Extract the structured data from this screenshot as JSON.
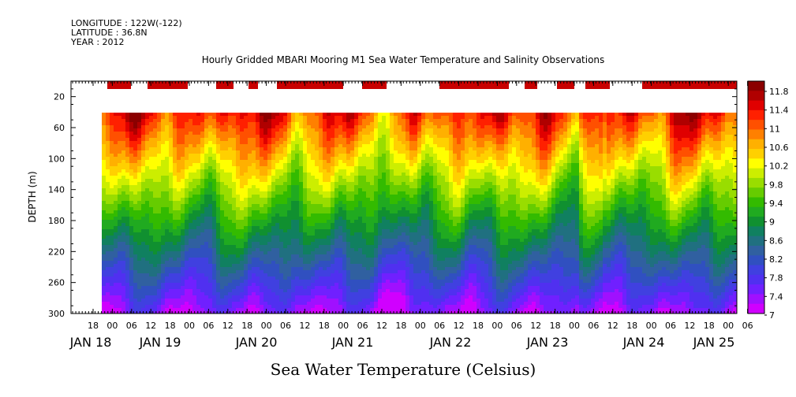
{
  "meta": {
    "longitude": "LONGITUDE : 122W(-122)",
    "latitude": "LATITUDE : 36.8N",
    "year": "YEAR : 2012"
  },
  "chart_data": {
    "type": "heatmap",
    "title": "Hourly Gridded MBARI Mooring M1 Sea Water Temperature and Salinity Observations",
    "xlabel": "Sea Water Temperature (Celsius)",
    "ylabel": "DEPTH (m)",
    "y_reversed": true,
    "ylim": [
      300,
      0
    ],
    "y_ticks": [
      "20",
      "60",
      "100",
      "140",
      "180",
      "220",
      "260",
      "300"
    ],
    "x_hour_labels": [
      "18",
      "00",
      "06",
      "12",
      "18",
      "00",
      "06",
      "12",
      "18",
      "00",
      "06",
      "12",
      "18",
      "00",
      "06",
      "12",
      "18",
      "00",
      "06",
      "12",
      "18",
      "00",
      "06",
      "12",
      "18",
      "00",
      "06",
      "12",
      "18",
      "00",
      "06",
      "12",
      "18",
      "00",
      "06"
    ],
    "x_day_labels": [
      "JAN 18",
      "JAN 19",
      "JAN 20",
      "JAN 21",
      "JAN 22",
      "JAN 23",
      "JAN 24",
      "JAN 25"
    ],
    "colorbar": {
      "labels": [
        "11.8",
        "11.4",
        "11",
        "10.6",
        "10.2",
        "9.8",
        "9.4",
        "9",
        "8.6",
        "8.2",
        "7.8",
        "7.4",
        "7"
      ],
      "colors": [
        "#8b0000",
        "#b00000",
        "#e00000",
        "#ff2000",
        "#ff5000",
        "#ff8000",
        "#ffb000",
        "#ffd000",
        "#ffff00",
        "#ccee00",
        "#99dd00",
        "#66cc00",
        "#33bb00",
        "#20aa20",
        "#109030",
        "#108060",
        "#207080",
        "#3060a0",
        "#3050c0",
        "#4040e0",
        "#5030f0",
        "#7020ff",
        "#a010ff",
        "#d000ff"
      ]
    },
    "surface_flags_color": "#c80000",
    "data_note_grid": {
      "depths": [
        40,
        60,
        80,
        100,
        120,
        140,
        160,
        180,
        200,
        220,
        240,
        260,
        280,
        300
      ],
      "surface_temperature_range": [
        10.6,
        11.8
      ],
      "bottom_temperature_range": [
        7.0,
        7.8
      ]
    }
  }
}
